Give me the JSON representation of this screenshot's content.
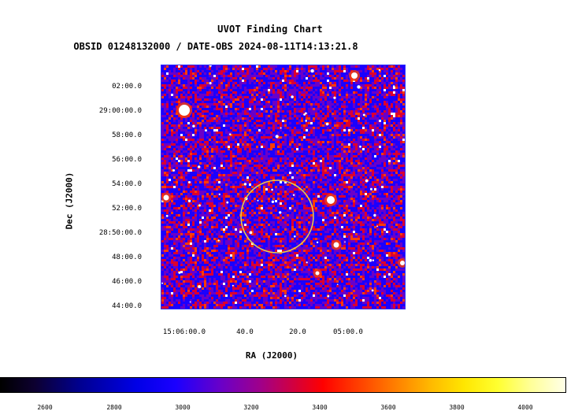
{
  "title": "UVOT Finding Chart",
  "subtitle": "OBSID 01248132000 / DATE-OBS 2024-08-11T14:13:21.8",
  "axes": {
    "xlabel": "RA (J2000)",
    "ylabel": "Dec (J2000)",
    "y_ticks": [
      "02:00.0",
      "29:00:00.0",
      "58:00.0",
      "56:00.0",
      "54:00.0",
      "52:00.0",
      "28:50:00.0",
      "48:00.0",
      "46:00.0",
      "44:00.0"
    ],
    "x_ticks": [
      "15:06:00.0",
      "40.0",
      "20.0",
      "05:00.0"
    ]
  },
  "source_region": {
    "shape": "circle",
    "color": "#e8c84a"
  },
  "colorbar": {
    "ticks": [
      "2600",
      "2800",
      "3000",
      "3200",
      "3400",
      "3600",
      "3800",
      "4000"
    ],
    "colormap": [
      "#000000",
      "#0000e6",
      "#a0008a",
      "#ff0000",
      "#ff8000",
      "#ffff30",
      "#ffffe8"
    ]
  },
  "image_colors": [
    "#1b00ff",
    "#6a00c8",
    "#dc0030",
    "#ff3c00",
    "#ffffff"
  ]
}
